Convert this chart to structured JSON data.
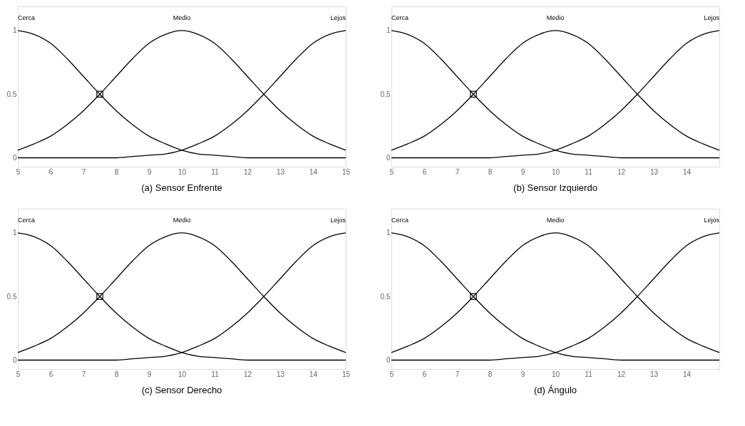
{
  "chart_data": [
    {
      "type": "line",
      "title": "(a) Sensor Enfrente",
      "xlim": [
        5,
        15
      ],
      "ylim": [
        -0.07,
        1.19
      ],
      "xticks": [
        5,
        6,
        7,
        8,
        9,
        10,
        11,
        12,
        13,
        14,
        15
      ],
      "yticks": [
        0,
        0.5,
        1
      ],
      "grid": false,
      "marker": "none",
      "line_style": "solid",
      "x": [
        5,
        5.5,
        6,
        6.5,
        7,
        7.5,
        8,
        8.5,
        9,
        9.5,
        10,
        10.5,
        11,
        11.5,
        12,
        12.5,
        13,
        13.5,
        14,
        14.5,
        15
      ],
      "series": [
        {
          "name": "Cerca",
          "color": "#000000",
          "values": [
            1,
            0.97,
            0.9,
            0.78,
            0.64,
            0.5,
            0.37,
            0.26,
            0.17,
            0.11,
            0.06,
            0.03,
            0.02,
            0.01,
            0,
            0,
            0,
            0,
            0,
            0,
            0
          ]
        },
        {
          "name": "Medio",
          "color": "#000000",
          "values": [
            0.06,
            0.11,
            0.17,
            0.26,
            0.37,
            0.5,
            0.64,
            0.78,
            0.9,
            0.97,
            1,
            0.97,
            0.9,
            0.78,
            0.64,
            0.5,
            0.37,
            0.26,
            0.17,
            0.11,
            0.06
          ]
        },
        {
          "name": "Lejos",
          "color": "#000000",
          "values": [
            0,
            0,
            0,
            0,
            0,
            0,
            0,
            0.01,
            0.02,
            0.03,
            0.06,
            0.11,
            0.17,
            0.26,
            0.37,
            0.5,
            0.64,
            0.78,
            0.9,
            0.97,
            1
          ]
        },
        {
          "type": "scatter",
          "marker": "square",
          "color": "#000000",
          "values": [
            null,
            null,
            null,
            null,
            null,
            0.5,
            null,
            null,
            null,
            null,
            null,
            null,
            null,
            null,
            null,
            null,
            null,
            null,
            null,
            null,
            null
          ]
        }
      ]
    },
    {
      "type": "line",
      "title": "(b) Sensor Izquierdo",
      "xlim": [
        5,
        15
      ],
      "ylim": [
        -0.07,
        1.19
      ],
      "xticks": [
        5,
        6,
        7,
        8,
        9,
        10,
        11,
        12,
        13,
        14
      ],
      "yticks": [
        0,
        0.5,
        1
      ],
      "grid": false,
      "marker": "none",
      "line_style": "solid",
      "x": [
        5,
        5.5,
        6,
        6.5,
        7,
        7.5,
        8,
        8.5,
        9,
        9.5,
        10,
        10.5,
        11,
        11.5,
        12,
        12.5,
        13,
        13.5,
        14,
        14.5,
        15
      ],
      "series": [
        {
          "name": "Cerca",
          "color": "#000000",
          "values": [
            1,
            0.97,
            0.9,
            0.78,
            0.64,
            0.5,
            0.37,
            0.26,
            0.17,
            0.11,
            0.06,
            0.03,
            0.02,
            0.01,
            0,
            0,
            0,
            0,
            0,
            0,
            0
          ]
        },
        {
          "name": "Medio",
          "color": "#000000",
          "values": [
            0.06,
            0.11,
            0.17,
            0.26,
            0.37,
            0.5,
            0.64,
            0.78,
            0.9,
            0.97,
            1,
            0.97,
            0.9,
            0.78,
            0.64,
            0.5,
            0.37,
            0.26,
            0.17,
            0.11,
            0.06
          ]
        },
        {
          "name": "Lejos",
          "color": "#000000",
          "values": [
            0,
            0,
            0,
            0,
            0,
            0,
            0,
            0.01,
            0.02,
            0.03,
            0.06,
            0.11,
            0.17,
            0.26,
            0.37,
            0.5,
            0.64,
            0.78,
            0.9,
            0.97,
            1
          ]
        },
        {
          "type": "scatter",
          "marker": "square",
          "color": "#000000",
          "values": [
            null,
            null,
            null,
            null,
            null,
            0.5,
            null,
            null,
            null,
            null,
            null,
            null,
            null,
            null,
            null,
            null,
            null,
            null,
            null,
            null,
            null
          ]
        }
      ]
    },
    {
      "type": "line",
      "title": "(c) Sensor Derecho",
      "xlim": [
        5,
        15
      ],
      "ylim": [
        -0.07,
        1.19
      ],
      "xticks": [
        5,
        6,
        7,
        8,
        9,
        10,
        11,
        12,
        13,
        14,
        15
      ],
      "yticks": [
        0,
        0.5,
        1
      ],
      "grid": false,
      "marker": "none",
      "line_style": "solid",
      "x": [
        5,
        5.5,
        6,
        6.5,
        7,
        7.5,
        8,
        8.5,
        9,
        9.5,
        10,
        10.5,
        11,
        11.5,
        12,
        12.5,
        13,
        13.5,
        14,
        14.5,
        15
      ],
      "series": [
        {
          "name": "Cerca",
          "color": "#000000",
          "values": [
            1,
            0.97,
            0.9,
            0.78,
            0.64,
            0.5,
            0.37,
            0.26,
            0.17,
            0.11,
            0.06,
            0.03,
            0.02,
            0.01,
            0,
            0,
            0,
            0,
            0,
            0,
            0
          ]
        },
        {
          "name": "Medio",
          "color": "#000000",
          "values": [
            0.06,
            0.11,
            0.17,
            0.26,
            0.37,
            0.5,
            0.64,
            0.78,
            0.9,
            0.97,
            1,
            0.97,
            0.9,
            0.78,
            0.64,
            0.5,
            0.37,
            0.26,
            0.17,
            0.11,
            0.06
          ]
        },
        {
          "name": "Lejos",
          "color": "#000000",
          "values": [
            0,
            0,
            0,
            0,
            0,
            0,
            0,
            0.01,
            0.02,
            0.03,
            0.06,
            0.11,
            0.17,
            0.26,
            0.37,
            0.5,
            0.64,
            0.78,
            0.9,
            0.97,
            1
          ]
        },
        {
          "type": "scatter",
          "marker": "square",
          "color": "#000000",
          "values": [
            null,
            null,
            null,
            null,
            null,
            0.5,
            null,
            null,
            null,
            null,
            null,
            null,
            null,
            null,
            null,
            null,
            null,
            null,
            null,
            null,
            null
          ]
        }
      ]
    },
    {
      "type": "line",
      "title": "(d) Ángulo",
      "xlim": [
        5,
        15
      ],
      "ylim": [
        -0.07,
        1.19
      ],
      "xticks": [
        5,
        6,
        7,
        8,
        9,
        10,
        11,
        12,
        13,
        14
      ],
      "yticks": [
        0,
        0.5,
        1
      ],
      "grid": false,
      "marker": "none",
      "line_style": "solid",
      "x": [
        5,
        5.5,
        6,
        6.5,
        7,
        7.5,
        8,
        8.5,
        9,
        9.5,
        10,
        10.5,
        11,
        11.5,
        12,
        12.5,
        13,
        13.5,
        14,
        14.5,
        15
      ],
      "series": [
        {
          "name": "Cerca",
          "color": "#000000",
          "values": [
            1,
            0.97,
            0.9,
            0.78,
            0.64,
            0.5,
            0.37,
            0.26,
            0.17,
            0.11,
            0.06,
            0.03,
            0.02,
            0.01,
            0,
            0,
            0,
            0,
            0,
            0,
            0
          ]
        },
        {
          "name": "Medio",
          "color": "#000000",
          "values": [
            0.06,
            0.11,
            0.17,
            0.26,
            0.37,
            0.5,
            0.64,
            0.78,
            0.9,
            0.97,
            1,
            0.97,
            0.9,
            0.78,
            0.64,
            0.5,
            0.37,
            0.26,
            0.17,
            0.11,
            0.06
          ]
        },
        {
          "name": "Lejos",
          "color": "#000000",
          "values": [
            0,
            0,
            0,
            0,
            0,
            0,
            0,
            0.01,
            0.02,
            0.03,
            0.06,
            0.11,
            0.17,
            0.26,
            0.37,
            0.5,
            0.64,
            0.78,
            0.9,
            0.97,
            1
          ]
        },
        {
          "type": "scatter",
          "marker": "square",
          "color": "#000000",
          "values": [
            null,
            null,
            null,
            null,
            null,
            0.5,
            null,
            null,
            null,
            null,
            null,
            null,
            null,
            null,
            null,
            null,
            null,
            null,
            null,
            null,
            null
          ]
        }
      ]
    }
  ]
}
